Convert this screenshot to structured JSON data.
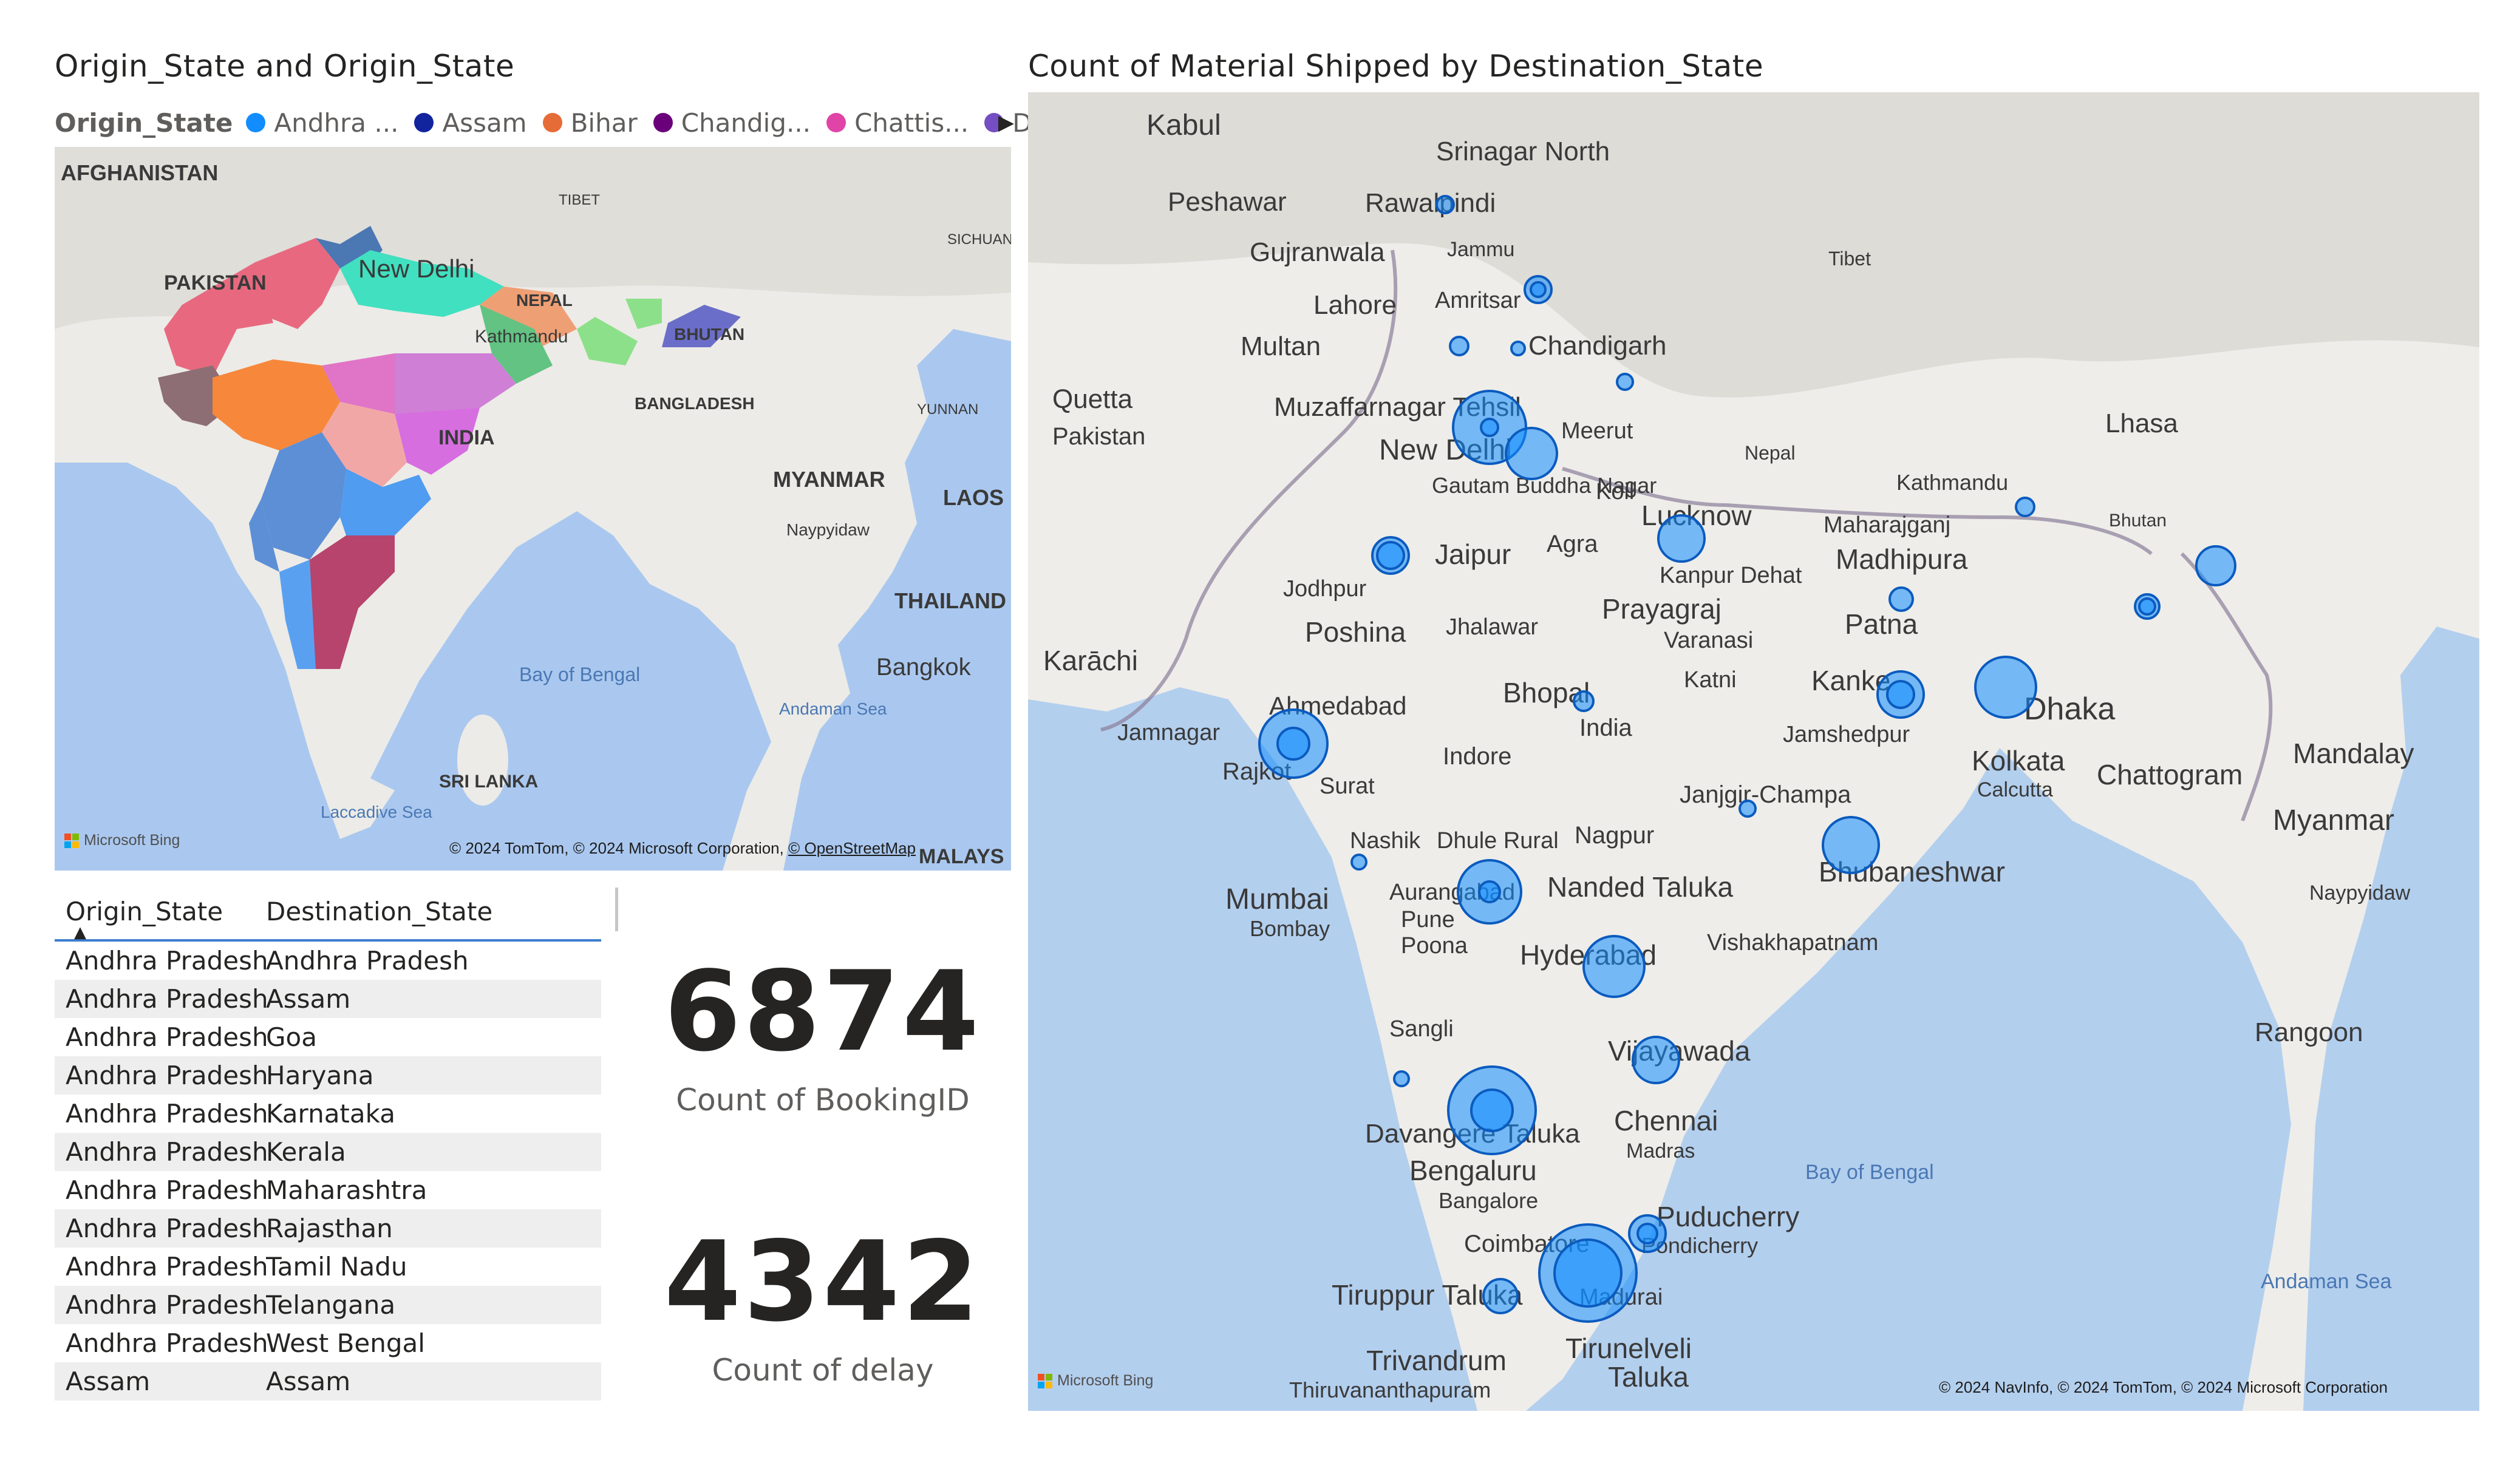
{
  "left_visual": {
    "title": "Origin_State and Origin_State",
    "legend": {
      "title": "Origin_State",
      "items": [
        {
          "label": "Andhra ...",
          "color": "#118dff"
        },
        {
          "label": "Assam",
          "color": "#12239e"
        },
        {
          "label": "Bihar",
          "color": "#e66c37"
        },
        {
          "label": "Chandig...",
          "color": "#6b007b"
        },
        {
          "label": "Chattis...",
          "color": "#e044a7"
        },
        {
          "label": "Delhi",
          "color": "#744ec2"
        }
      ],
      "next_arrow": "▶"
    },
    "map_labels": {
      "afghanistan": "AFGHANISTAN",
      "pakistan": "PAKISTAN",
      "tibet": "TIBET",
      "sichuan": "SICHUAN",
      "new_delhi": "New Delhi",
      "nepal": "NEPAL",
      "kathmandu": "Kathmandu",
      "bhutan": "BHUTAN",
      "bangladesh": "BANGLADESH",
      "yunnan": "YUNNAN",
      "india": "INDIA",
      "myanmar": "MYANMAR",
      "laos": "LAOS",
      "naypyidaw": "Naypyidaw",
      "thailand": "THAILAND",
      "bangkok": "Bangkok",
      "bay_of_bengal": "Bay of Bengal",
      "andaman_sea": "Andaman Sea",
      "laccadive_sea": "Laccadive Sea",
      "sri_lanka": "SRI LANKA",
      "malays": "MALAYS"
    },
    "attribution": "© 2024 TomTom, © 2024 Microsoft Corporation,",
    "attribution_link": "© OpenStreetMap",
    "bing_label": "Microsoft Bing"
  },
  "table": {
    "columns": [
      "Origin_State",
      "Destination_State"
    ],
    "sort_indicator": "▲",
    "rows": [
      [
        "Andhra Pradesh",
        "Andhra Pradesh"
      ],
      [
        "Andhra Pradesh",
        "Assam"
      ],
      [
        "Andhra Pradesh",
        "Goa"
      ],
      [
        "Andhra Pradesh",
        "Haryana"
      ],
      [
        "Andhra Pradesh",
        "Karnataka"
      ],
      [
        "Andhra Pradesh",
        "Kerala"
      ],
      [
        "Andhra Pradesh",
        "Maharashtra"
      ],
      [
        "Andhra Pradesh",
        "Rajasthan"
      ],
      [
        "Andhra Pradesh",
        "Tamil Nadu"
      ],
      [
        "Andhra Pradesh",
        "Telangana"
      ],
      [
        "Andhra Pradesh",
        "West Bengal"
      ],
      [
        "Assam",
        "Assam"
      ]
    ]
  },
  "cards": [
    {
      "value": "6874",
      "label": "Count of BookingID"
    },
    {
      "value": "4342",
      "label": "Count of delay"
    }
  ],
  "right_visual": {
    "title": "Count of Material Shipped by Destination_State",
    "map_labels": {
      "kabul": "Kabul",
      "peshawar": "Peshawar",
      "rawalpindi": "Rawalpindi",
      "srinagar": "Srinagar North",
      "jammu": "Jammu",
      "gujranwala": "Gujranwala",
      "amritsar": "Amritsar",
      "lahore": "Lahore",
      "multan": "Multan",
      "chandigarh": "Chandigarh",
      "quetta": "Quetta",
      "pakistan": "Pakistan",
      "muzaffarnagar": "Muzaffarnagar Tehsil",
      "meerut": "Meerut",
      "new_delhi": "New Delhi",
      "gautam": "Gautam Buddha Nagar",
      "koil": "Koil",
      "jaipur": "Jaipur",
      "agra": "Agra",
      "lucknow": "Lucknow",
      "kanpur": "Kanpur Dehat",
      "maharajganj": "Maharajganj",
      "madhipura": "Madhipura",
      "lhasa": "Lhasa",
      "kathmandu": "Kathmandu",
      "nepal": "Nepal",
      "tibet": "Tibet",
      "bhutan": "Bhutan",
      "jodhpur": "Jodhpur",
      "poshina": "Poshina",
      "jhalawar": "Jhalawar",
      "prayagraj": "Prayagraj",
      "varanasi": "Varanasi",
      "patna": "Patna",
      "karachi": "Karāchi",
      "ahmedabad": "Ahmedabad",
      "bhopal": "Bhopal",
      "katni": "Katni",
      "kanke": "Kanke",
      "india": "India",
      "jamnagar": "Jamnagar",
      "rajkot": "Rajkot",
      "indore": "Indore",
      "jamshedpur": "Jamshedpur",
      "dhaka": "Dhaka",
      "kolkata": "Kolkata",
      "calcutta": "Calcutta",
      "chattogram": "Chattogram",
      "mandalay": "Mandalay",
      "myanmar": "Myanmar",
      "surat": "Surat",
      "janjgir": "Janjgir-Champa",
      "nagpur": "Nagpur",
      "nashik": "Nashik",
      "dhule": "Dhule Rural",
      "bhubaneshwar": "Bhubaneshwar",
      "naypyidaw": "Naypyidaw",
      "mumbai": "Mumbai",
      "bombay": "Bombay",
      "aurangabad": "Aurangabad",
      "nanded": "Nanded Taluka",
      "pune": "Pune",
      "poona": "Poona",
      "vishakhapatnam": "Vishakhapatnam",
      "hyderabad": "Hyderabad",
      "sangli": "Sangli",
      "vijayawada": "Vijayawada",
      "rangoon": "Rangoon",
      "chennai": "Chennai",
      "madras": "Madras",
      "davangere": "Davangere Taluka",
      "bengaluru": "Bengaluru",
      "bangalore": "Bangalore",
      "bay_of_bengal": "Bay of Bengal",
      "puducherry": "Puducherry",
      "pondicherry": "Pondicherry",
      "coimbatore": "Coimbatore",
      "tiruppur": "Tiruppur Taluka",
      "madurai": "Madurai",
      "andaman_sea": "Andaman Sea",
      "trivandrum": "Trivandrum",
      "thiruvananthapuram": "Thiruvananthapuram",
      "tirunelveli": "Tirunelveli",
      "taluka": "Taluka"
    },
    "attribution": "© 2024 NavInfo, © 2024 TomTom, © 2024 Microsoft Corporation",
    "bing_label": "Microsoft Bing",
    "bubble_color": "#118dff"
  }
}
